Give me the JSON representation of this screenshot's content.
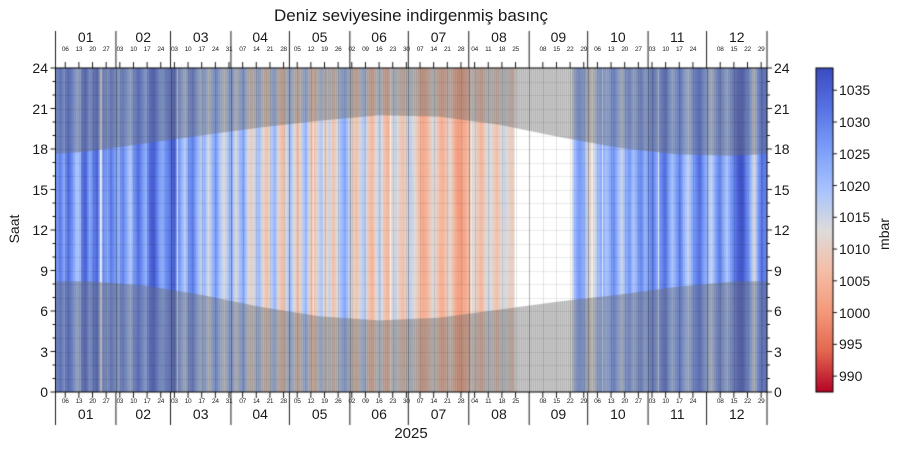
{
  "chart_data": {
    "type": "heatmap",
    "title": "Deniz seviyesine indirgenmiş basınç",
    "xlabel": "2025",
    "ylabel": "Saat",
    "y_axis": {
      "label": "Saat",
      "min": 0,
      "max": 24,
      "major_tick_step": 3,
      "minor_tick_step": 1,
      "tick_labels": [
        "0",
        "3",
        "6",
        "9",
        "12",
        "15",
        "18",
        "21",
        "24"
      ]
    },
    "x_axis": {
      "year": "2025",
      "months": [
        {
          "label": "01",
          "length": 31,
          "monday_labels": [
            "06",
            "13",
            "20",
            "27"
          ]
        },
        {
          "label": "02",
          "length": 28,
          "monday_labels": [
            "03",
            "10",
            "17",
            "24"
          ]
        },
        {
          "label": "03",
          "length": 31,
          "monday_labels": [
            "03",
            "10",
            "17",
            "24",
            "31"
          ]
        },
        {
          "label": "04",
          "length": 30,
          "monday_labels": [
            "07",
            "14",
            "21",
            "28"
          ]
        },
        {
          "label": "05",
          "length": 31,
          "monday_labels": [
            "05",
            "12",
            "19",
            "26"
          ]
        },
        {
          "label": "06",
          "length": 30,
          "monday_labels": [
            "02",
            "09",
            "16",
            "23",
            "30"
          ]
        },
        {
          "label": "07",
          "length": 31,
          "monday_labels": [
            "07",
            "14",
            "21",
            "28"
          ]
        },
        {
          "label": "08",
          "length": 31,
          "monday_labels": [
            "04",
            "11",
            "18",
            "25"
          ]
        },
        {
          "label": "09",
          "length": 30,
          "monday_labels": [
            "08",
            "15",
            "22",
            "29"
          ]
        },
        {
          "label": "10",
          "length": 31,
          "monday_labels": [
            "06",
            "13",
            "20",
            "27"
          ]
        },
        {
          "label": "11",
          "length": 30,
          "monday_labels": [
            "03",
            "10",
            "17",
            "24"
          ]
        },
        {
          "label": "12",
          "length": 31,
          "monday_labels": [
            "08",
            "15",
            "22",
            "29"
          ]
        }
      ]
    },
    "colorbar": {
      "label": "mbar",
      "vmin": 987.5,
      "vmax": 1038.5,
      "tick_values": [
        1035,
        1030,
        1025,
        1020,
        1015,
        1010,
        1005,
        1000,
        995,
        990
      ],
      "colormap_name": "coolwarm reversed (blue = high pressure, red = low pressure)",
      "colormap_stops": [
        [
          0.0,
          59,
          76,
          192
        ],
        [
          0.125,
          87,
          115,
          227
        ],
        [
          0.25,
          124,
          158,
          249
        ],
        [
          0.375,
          168,
          195,
          254
        ],
        [
          0.5,
          221,
          220,
          219
        ],
        [
          0.625,
          245,
          190,
          167
        ],
        [
          0.75,
          244,
          154,
          123
        ],
        [
          0.875,
          227,
          103,
          80
        ],
        [
          1.0,
          180,
          4,
          38
        ]
      ]
    },
    "night_shading": {
      "overlay_color": "rgba(110,110,110,0.35)",
      "sunrise_hour_by_month": [
        8.2,
        7.9,
        7.2,
        6.3,
        5.6,
        5.3,
        5.5,
        6.1,
        6.7,
        7.2,
        7.8,
        8.2
      ],
      "sunset_hour_by_month": [
        17.8,
        18.4,
        19.0,
        19.6,
        20.1,
        20.5,
        20.4,
        19.8,
        18.9,
        18.1,
        17.6,
        17.5
      ]
    },
    "daily_mean_pressure": {
      "unit": "mbar",
      "format": "[day_of_year_2025, pressure_mbar]",
      "points": [
        [
          1,
          1026
        ],
        [
          3,
          1031
        ],
        [
          5,
          1024
        ],
        [
          7,
          1034
        ],
        [
          9,
          1028
        ],
        [
          11,
          1020
        ],
        [
          13,
          1018
        ],
        [
          14,
          1031
        ],
        [
          16,
          1035
        ],
        [
          18,
          1024
        ],
        [
          20,
          1030
        ],
        [
          22,
          1035
        ],
        [
          24,
          1014
        ],
        [
          25,
          1029
        ],
        [
          27,
          1024
        ],
        [
          29,
          1031
        ],
        [
          31,
          1026
        ],
        [
          33,
          1022
        ],
        [
          35,
          1030
        ],
        [
          37,
          1024
        ],
        [
          39,
          1018
        ],
        [
          41,
          1027
        ],
        [
          43,
          1033
        ],
        [
          45,
          1027
        ],
        [
          47,
          1022
        ],
        [
          49,
          1034
        ],
        [
          51,
          1036
        ],
        [
          53,
          1029
        ],
        [
          55,
          1022
        ],
        [
          57,
          1028
        ],
        [
          59,
          1031
        ],
        [
          61,
          1035
        ],
        [
          63,
          1030
        ],
        [
          65,
          1023
        ],
        [
          67,
          1017
        ],
        [
          69,
          1027
        ],
        [
          71,
          1031
        ],
        [
          73,
          1023
        ],
        [
          75,
          1017
        ],
        [
          77,
          1022
        ],
        [
          79,
          1013
        ],
        [
          81,
          1021
        ],
        [
          83,
          1026
        ],
        [
          85,
          1018
        ],
        [
          87,
          1013
        ],
        [
          89,
          1019
        ],
        [
          91,
          1023
        ],
        [
          93,
          1012
        ],
        [
          95,
          1020
        ],
        [
          97,
          1024
        ],
        [
          99,
          1015
        ],
        [
          101,
          1009
        ],
        [
          103,
          1016
        ],
        [
          105,
          1021
        ],
        [
          107,
          1012
        ],
        [
          109,
          1007
        ],
        [
          111,
          1016
        ],
        [
          113,
          1022
        ],
        [
          115,
          1011
        ],
        [
          117,
          1006
        ],
        [
          119,
          1014
        ],
        [
          121,
          1020
        ],
        [
          123,
          1013
        ],
        [
          125,
          1007
        ],
        [
          127,
          1016
        ],
        [
          129,
          1022
        ],
        [
          131,
          1010
        ],
        [
          133,
          1005
        ],
        [
          135,
          1014
        ],
        [
          137,
          1019
        ],
        [
          139,
          1009
        ],
        [
          141,
          1016
        ],
        [
          143,
          1007
        ],
        [
          145,
          1013
        ],
        [
          147,
          1020
        ],
        [
          149,
          1024
        ],
        [
          151,
          1017
        ],
        [
          153,
          1011
        ],
        [
          155,
          1007
        ],
        [
          157,
          1015
        ],
        [
          159,
          1019
        ],
        [
          161,
          1009
        ],
        [
          163,
          1005
        ],
        [
          165,
          1013
        ],
        [
          167,
          1017
        ],
        [
          169,
          1008
        ],
        [
          171,
          1005
        ],
        [
          173,
          1012
        ],
        [
          175,
          1016
        ],
        [
          177,
          1010
        ],
        [
          179,
          1007
        ],
        [
          181,
          1014
        ],
        [
          183,
          1016
        ],
        [
          185,
          1012
        ],
        [
          187,
          1007
        ],
        [
          189,
          1003
        ],
        [
          191,
          1005
        ],
        [
          193,
          1010
        ],
        [
          195,
          1014
        ],
        [
          197,
          1007
        ],
        [
          199,
          1004
        ],
        [
          201,
          1008
        ],
        [
          203,
          1012
        ],
        [
          205,
          1005
        ],
        [
          207,
          1001
        ],
        [
          209,
          1002
        ],
        [
          211,
          1004
        ],
        [
          213,
          1008
        ],
        [
          215,
          1013
        ],
        [
          217,
          1009
        ],
        [
          219,
          1005
        ],
        [
          221,
          1011
        ],
        [
          223,
          1015
        ],
        [
          225,
          1011
        ],
        [
          227,
          1007
        ],
        [
          229,
          1012
        ],
        [
          231,
          1015
        ],
        [
          233,
          1011
        ],
        [
          235,
          1009
        ],
        [
          237,
          1013
        ],
        [
          239,
          1013
        ],
        [
          266,
          1015
        ],
        [
          267,
          1021
        ],
        [
          269,
          1026
        ],
        [
          271,
          1024
        ],
        [
          273,
          1017
        ],
        [
          275,
          1011
        ],
        [
          277,
          1014
        ],
        [
          279,
          1020
        ],
        [
          281,
          1025
        ],
        [
          283,
          1019
        ],
        [
          285,
          1023
        ],
        [
          287,
          1028
        ],
        [
          289,
          1021
        ],
        [
          291,
          1015
        ],
        [
          293,
          1022
        ],
        [
          295,
          1027
        ],
        [
          297,
          1019
        ],
        [
          299,
          1024
        ],
        [
          301,
          1029
        ],
        [
          303,
          1022
        ],
        [
          305,
          1026
        ],
        [
          307,
          1031
        ],
        [
          309,
          1024
        ],
        [
          311,
          1028
        ],
        [
          313,
          1033
        ],
        [
          315,
          1026
        ],
        [
          317,
          1019
        ],
        [
          319,
          1025
        ],
        [
          321,
          1030
        ],
        [
          323,
          1022
        ],
        [
          325,
          1016
        ],
        [
          327,
          1023
        ],
        [
          329,
          1029
        ],
        [
          331,
          1033
        ],
        [
          333,
          1026
        ],
        [
          335,
          1021
        ],
        [
          337,
          1015
        ],
        [
          339,
          1024
        ],
        [
          341,
          1030
        ],
        [
          343,
          1025
        ],
        [
          345,
          1019
        ],
        [
          347,
          1026
        ],
        [
          349,
          1031
        ],
        [
          351,
          1036
        ],
        [
          353,
          1037
        ],
        [
          355,
          1030
        ],
        [
          357,
          1023
        ],
        [
          359,
          1012
        ],
        [
          361,
          1026
        ],
        [
          363,
          1033
        ],
        [
          365,
          1029
        ]
      ]
    },
    "missing_data_day_ranges": [
      [
        236.5,
        266.0
      ],
      [
        24.0,
        24.5
      ],
      [
        63.2,
        63.7
      ],
      [
        133.0,
        133.4
      ],
      [
        172.6,
        173.0
      ],
      [
        214.0,
        214.4
      ],
      [
        276.0,
        276.5
      ],
      [
        281.5,
        281.9
      ],
      [
        310.2,
        310.6
      ]
    ],
    "diurnal_texture_amplitude_mbar": 0.8,
    "grid": {
      "vertical": "weekly (Monday) lines + darker month boundary lines",
      "horizontal": "hourly lines"
    }
  }
}
